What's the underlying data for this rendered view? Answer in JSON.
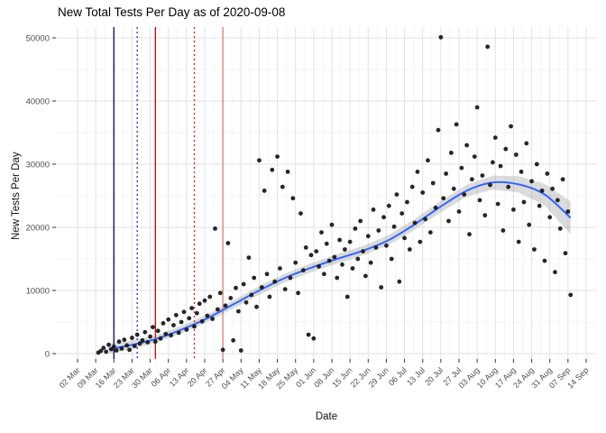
{
  "chart_data": {
    "type": "scatter",
    "title": "New Total Tests Per Day as of 2020-09-08",
    "xlabel": "Date",
    "ylabel": "New Tests Per Day",
    "x_unit": "days since 2020-03-02",
    "ylim": [
      0,
      50000
    ],
    "y_ticks": [
      0,
      10000,
      20000,
      30000,
      40000,
      50000
    ],
    "y_minor": [
      5000,
      15000,
      25000,
      35000,
      45000
    ],
    "x_tick_days": [
      0,
      7,
      14,
      21,
      28,
      35,
      42,
      49,
      56,
      63,
      70,
      77,
      84,
      91,
      98,
      105,
      112,
      119,
      126,
      133,
      140,
      147,
      154,
      161,
      168,
      175,
      182,
      189,
      196
    ],
    "x_tick_labels": [
      "02 Mar",
      "09 Mar",
      "16 Mar",
      "23 Mar",
      "30 Mar",
      "06 Apr",
      "13 Apr",
      "20 Apr",
      "27 Apr",
      "04 May",
      "11 May",
      "18 May",
      "25 May",
      "01 Jun",
      "08 Jun",
      "15 Jun",
      "22 Jun",
      "29 Jun",
      "06 Jul",
      "13 Jul",
      "20 Jul",
      "27 Jul",
      "03 Aug",
      "10 Aug",
      "17 Aug",
      "24 Aug",
      "31 Aug",
      "07 Sep",
      "14 Sep"
    ],
    "colors": {
      "point": "#1a1a1a",
      "smooth": "#3366ff",
      "ribbon": "#999999",
      "grid_major": "#e2e2e2",
      "grid_minor": "#f1f1f1",
      "axis_text": "#4d4d4d",
      "tick_mark": "#333333",
      "title": "#000000"
    },
    "vlines": [
      {
        "day": 14,
        "date": "2020-03-16",
        "color": "#0b0b45",
        "style": "solid"
      },
      {
        "day": 23,
        "date": "2020-03-25",
        "color": "#2e2eb8",
        "style": "dotted"
      },
      {
        "day": 30,
        "date": "2020-04-01",
        "color": "#d40000",
        "style": "solid"
      },
      {
        "day": 45,
        "date": "2020-04-16",
        "color": "#e02020",
        "style": "dotted"
      },
      {
        "day": 56,
        "date": "2020-04-27",
        "color": "#e07a7a",
        "style": "solid"
      }
    ],
    "smooth": {
      "x": [
        12,
        20,
        30,
        40,
        50,
        60,
        70,
        80,
        90,
        100,
        110,
        120,
        130,
        140,
        150,
        160,
        170,
        180,
        190
      ],
      "y": [
        700,
        1300,
        2300,
        3800,
        5600,
        7800,
        10000,
        12000,
        13600,
        15000,
        16300,
        18000,
        20500,
        23300,
        25800,
        27100,
        26800,
        25200,
        21500
      ],
      "lower": [
        0,
        600,
        1700,
        3200,
        5000,
        7150,
        9300,
        11300,
        12900,
        14250,
        15550,
        17200,
        19650,
        22400,
        24850,
        26000,
        25500,
        23500,
        18900
      ],
      "upper": [
        1600,
        2000,
        2900,
        4400,
        6200,
        8450,
        10700,
        12700,
        14300,
        15750,
        17050,
        18800,
        21350,
        24200,
        26750,
        28200,
        28100,
        26900,
        24100
      ]
    },
    "points": [
      [
        8,
        150
      ],
      [
        9,
        420
      ],
      [
        10,
        900
      ],
      [
        11,
        300
      ],
      [
        12,
        1400
      ],
      [
        13,
        700
      ],
      [
        14,
        1100
      ],
      [
        15,
        500
      ],
      [
        16,
        1900
      ],
      [
        17,
        800
      ],
      [
        18,
        2200
      ],
      [
        19,
        1300
      ],
      [
        20,
        600
      ],
      [
        21,
        2500
      ],
      [
        22,
        1200
      ],
      [
        23,
        3000
      ],
      [
        24,
        1600
      ],
      [
        25,
        2100
      ],
      [
        26,
        3400
      ],
      [
        27,
        1800
      ],
      [
        28,
        2700
      ],
      [
        29,
        4200
      ],
      [
        30,
        1900
      ],
      [
        31,
        3600
      ],
      [
        32,
        2400
      ],
      [
        33,
        4800
      ],
      [
        34,
        3100
      ],
      [
        35,
        5400
      ],
      [
        36,
        2900
      ],
      [
        37,
        4500
      ],
      [
        38,
        6100
      ],
      [
        39,
        3300
      ],
      [
        40,
        5000
      ],
      [
        41,
        6600
      ],
      [
        42,
        3800
      ],
      [
        43,
        5600
      ],
      [
        44,
        7200
      ],
      [
        45,
        4300
      ],
      [
        46,
        6400
      ],
      [
        47,
        7900
      ],
      [
        48,
        5100
      ],
      [
        49,
        8400
      ],
      [
        50,
        6000
      ],
      [
        51,
        9000
      ],
      [
        52,
        5500
      ],
      [
        53,
        19800
      ],
      [
        54,
        7000
      ],
      [
        55,
        9600
      ],
      [
        56,
        600
      ],
      [
        57,
        7600
      ],
      [
        58,
        17500
      ],
      [
        59,
        8800
      ],
      [
        60,
        2100
      ],
      [
        61,
        10400
      ],
      [
        62,
        6700
      ],
      [
        63,
        500
      ],
      [
        64,
        11000
      ],
      [
        65,
        8100
      ],
      [
        66,
        15200
      ],
      [
        67,
        9300
      ],
      [
        68,
        12000
      ],
      [
        69,
        7400
      ],
      [
        70,
        30600
      ],
      [
        71,
        10500
      ],
      [
        72,
        25800
      ],
      [
        73,
        12600
      ],
      [
        74,
        9000
      ],
      [
        75,
        29100
      ],
      [
        76,
        11400
      ],
      [
        77,
        31200
      ],
      [
        78,
        13500
      ],
      [
        79,
        26400
      ],
      [
        80,
        10200
      ],
      [
        81,
        28800
      ],
      [
        82,
        12000
      ],
      [
        83,
        24600
      ],
      [
        84,
        14400
      ],
      [
        85,
        9600
      ],
      [
        86,
        22200
      ],
      [
        87,
        13200
      ],
      [
        88,
        16800
      ],
      [
        89,
        3000
      ],
      [
        90,
        15600
      ],
      [
        91,
        2400
      ],
      [
        92,
        16200
      ],
      [
        93,
        13800
      ],
      [
        94,
        19200
      ],
      [
        95,
        12600
      ],
      [
        96,
        17400
      ],
      [
        97,
        14700
      ],
      [
        98,
        20400
      ],
      [
        99,
        15300
      ],
      [
        100,
        12000
      ],
      [
        101,
        18000
      ],
      [
        102,
        14100
      ],
      [
        103,
        16500
      ],
      [
        104,
        9000
      ],
      [
        105,
        17700
      ],
      [
        106,
        13500
      ],
      [
        107,
        19800
      ],
      [
        108,
        15000
      ],
      [
        109,
        21000
      ],
      [
        110,
        16200
      ],
      [
        111,
        12300
      ],
      [
        112,
        18600
      ],
      [
        113,
        14400
      ],
      [
        114,
        22800
      ],
      [
        115,
        16800
      ],
      [
        116,
        19500
      ],
      [
        117,
        10500
      ],
      [
        118,
        21600
      ],
      [
        119,
        17100
      ],
      [
        120,
        23400
      ],
      [
        121,
        15000
      ],
      [
        122,
        20100
      ],
      [
        123,
        25200
      ],
      [
        124,
        11400
      ],
      [
        125,
        22200
      ],
      [
        126,
        18300
      ],
      [
        127,
        24000
      ],
      [
        128,
        16500
      ],
      [
        129,
        26400
      ],
      [
        130,
        20700
      ],
      [
        131,
        28800
      ],
      [
        132,
        17700
      ],
      [
        133,
        25500
      ],
      [
        134,
        21300
      ],
      [
        135,
        30600
      ],
      [
        136,
        19200
      ],
      [
        137,
        27000
      ],
      [
        138,
        23100
      ],
      [
        139,
        35400
      ],
      [
        140,
        50100
      ],
      [
        141,
        24600
      ],
      [
        142,
        28500
      ],
      [
        143,
        21000
      ],
      [
        144,
        31800
      ],
      [
        145,
        26100
      ],
      [
        146,
        36300
      ],
      [
        147,
        22500
      ],
      [
        148,
        29400
      ],
      [
        149,
        25200
      ],
      [
        150,
        33000
      ],
      [
        151,
        18900
      ],
      [
        152,
        27600
      ],
      [
        153,
        31200
      ],
      [
        154,
        39000
      ],
      [
        155,
        24300
      ],
      [
        156,
        28200
      ],
      [
        157,
        21900
      ],
      [
        158,
        48600
      ],
      [
        159,
        26700
      ],
      [
        160,
        30300
      ],
      [
        161,
        34200
      ],
      [
        162,
        23700
      ],
      [
        163,
        29700
      ],
      [
        164,
        19500
      ],
      [
        165,
        32400
      ],
      [
        166,
        26400
      ],
      [
        167,
        36000
      ],
      [
        168,
        22800
      ],
      [
        169,
        31500
      ],
      [
        170,
        17700
      ],
      [
        171,
        28800
      ],
      [
        172,
        24000
      ],
      [
        173,
        33300
      ],
      [
        174,
        20400
      ],
      [
        175,
        27300
      ],
      [
        176,
        16500
      ],
      [
        177,
        30000
      ],
      [
        178,
        23400
      ],
      [
        179,
        25800
      ],
      [
        180,
        14700
      ],
      [
        181,
        28500
      ],
      [
        182,
        21600
      ],
      [
        183,
        26100
      ],
      [
        184,
        12900
      ],
      [
        185,
        24300
      ],
      [
        186,
        19800
      ],
      [
        187,
        27600
      ],
      [
        188,
        15900
      ],
      [
        189,
        22500
      ],
      [
        190,
        9300
      ]
    ]
  }
}
